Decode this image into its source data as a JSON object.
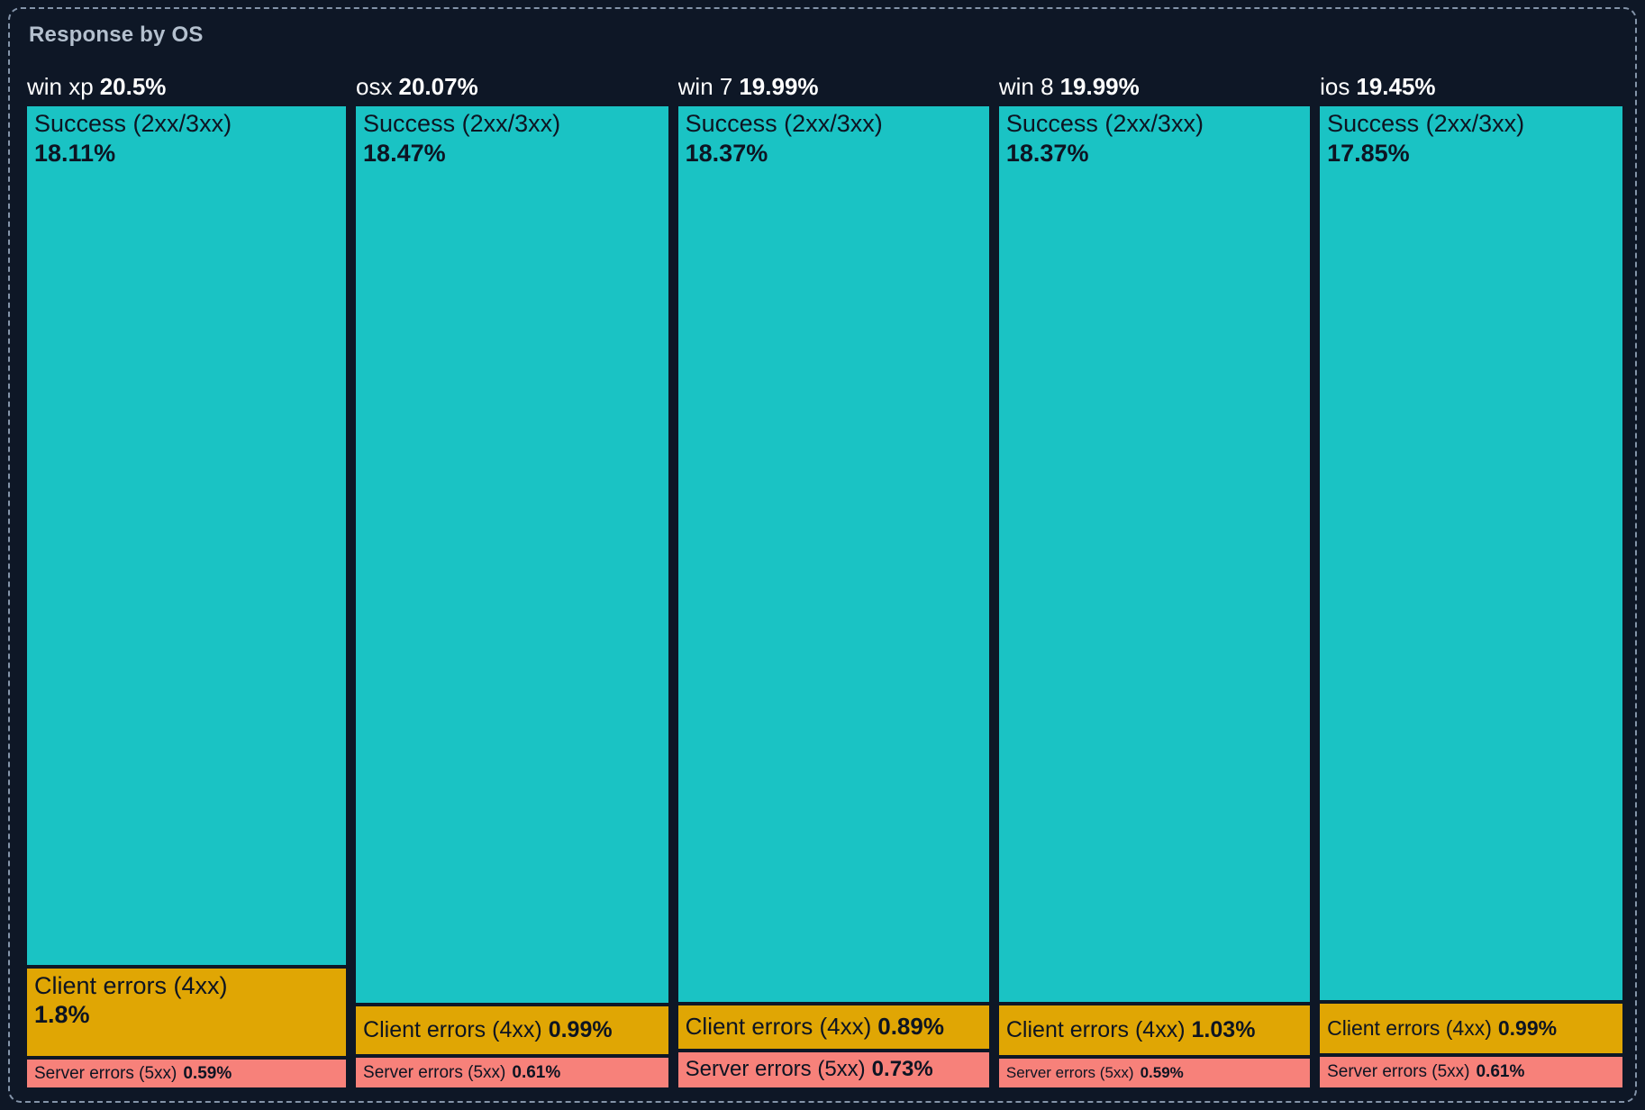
{
  "panel": {
    "title": "Response by OS"
  },
  "colors": {
    "background": "#0E1726",
    "border": "#8494A9",
    "title_text": "#B4C0CE",
    "header_text": "#FFFFFF",
    "block_text": "#0D1422",
    "success": "#1AC3C4",
    "client_errors": "#E0A604",
    "server_errors": "#F7817A"
  },
  "chart_data": {
    "type": "treemap",
    "title": "Response by OS",
    "legend_position": "none",
    "units": "percent of total responses",
    "groups": [
      {
        "label": "win xp",
        "share_pct": 20.5,
        "share_label": "20.5%",
        "segments": [
          {
            "label": "Success (2xx/3xx)",
            "value": 18.11,
            "value_label": "18.11%",
            "category": "success"
          },
          {
            "label": "Client errors (4xx)",
            "value": 1.8,
            "value_label": "1.8%",
            "category": "client_errors"
          },
          {
            "label": "Server errors (5xx)",
            "value": 0.59,
            "value_label": "0.59%",
            "category": "server_errors"
          }
        ]
      },
      {
        "label": "osx",
        "share_pct": 20.07,
        "share_label": "20.07%",
        "segments": [
          {
            "label": "Success (2xx/3xx)",
            "value": 18.47,
            "value_label": "18.47%",
            "category": "success"
          },
          {
            "label": "Client errors (4xx)",
            "value": 0.99,
            "value_label": "0.99%",
            "category": "client_errors"
          },
          {
            "label": "Server errors (5xx)",
            "value": 0.61,
            "value_label": "0.61%",
            "category": "server_errors"
          }
        ]
      },
      {
        "label": "win 7",
        "share_pct": 19.99,
        "share_label": "19.99%",
        "segments": [
          {
            "label": "Success (2xx/3xx)",
            "value": 18.37,
            "value_label": "18.37%",
            "category": "success"
          },
          {
            "label": "Client errors (4xx)",
            "value": 0.89,
            "value_label": "0.89%",
            "category": "client_errors"
          },
          {
            "label": "Server errors (5xx)",
            "value": 0.73,
            "value_label": "0.73%",
            "category": "server_errors"
          }
        ]
      },
      {
        "label": "win 8",
        "share_pct": 19.99,
        "share_label": "19.99%",
        "segments": [
          {
            "label": "Success (2xx/3xx)",
            "value": 18.37,
            "value_label": "18.37%",
            "category": "success"
          },
          {
            "label": "Client errors (4xx)",
            "value": 1.03,
            "value_label": "1.03%",
            "category": "client_errors"
          },
          {
            "label": "Server errors (5xx)",
            "value": 0.59,
            "value_label": "0.59%",
            "category": "server_errors"
          }
        ]
      },
      {
        "label": "ios",
        "share_pct": 19.45,
        "share_label": "19.45%",
        "segments": [
          {
            "label": "Success (2xx/3xx)",
            "value": 17.85,
            "value_label": "17.85%",
            "category": "success"
          },
          {
            "label": "Client errors (4xx)",
            "value": 0.99,
            "value_label": "0.99%",
            "category": "client_errors"
          },
          {
            "label": "Server errors (5xx)",
            "value": 0.61,
            "value_label": "0.61%",
            "category": "server_errors"
          }
        ]
      }
    ]
  }
}
